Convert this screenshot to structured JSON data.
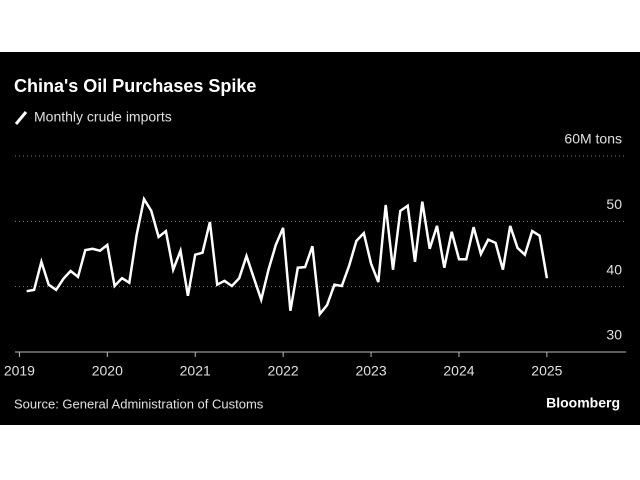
{
  "chart_data": {
    "type": "line",
    "title": "China's Oil Purchases Spike",
    "source": "Source: General Administration of Customs",
    "brand": "Bloomberg",
    "x": [
      2019.083,
      2019.167,
      2019.25,
      2019.333,
      2019.417,
      2019.5,
      2019.583,
      2019.667,
      2019.75,
      2019.833,
      2019.917,
      2020.0,
      2020.083,
      2020.167,
      2020.25,
      2020.333,
      2020.417,
      2020.5,
      2020.583,
      2020.667,
      2020.75,
      2020.833,
      2020.917,
      2021.0,
      2021.083,
      2021.167,
      2021.25,
      2021.333,
      2021.417,
      2021.5,
      2021.583,
      2021.667,
      2021.75,
      2021.833,
      2021.917,
      2022.0,
      2022.083,
      2022.167,
      2022.25,
      2022.333,
      2022.417,
      2022.5,
      2022.583,
      2022.667,
      2022.75,
      2022.833,
      2022.917,
      2023.0,
      2023.083,
      2023.167,
      2023.25,
      2023.333,
      2023.417,
      2023.5,
      2023.583,
      2023.667,
      2023.75,
      2023.833,
      2023.917,
      2024.0,
      2024.083,
      2024.167,
      2024.25,
      2024.333,
      2024.417,
      2024.5,
      2024.583,
      2024.667,
      2024.75,
      2024.833,
      2024.917,
      2025.0
    ],
    "series": [
      {
        "name": "Monthly crude imports",
        "color": "#ffffff",
        "values": [
          39.3,
          39.5,
          43.8,
          40.3,
          39.5,
          41.2,
          42.4,
          41.5,
          45.6,
          45.8,
          45.5,
          46.4,
          40.1,
          41.3,
          40.6,
          47.9,
          53.4,
          51.6,
          47.6,
          48.5,
          42.6,
          45.5,
          38.6,
          44.9,
          45.2,
          49.9,
          40.3,
          40.9,
          40.1,
          41.3,
          44.7,
          41.3,
          38.0,
          42.6,
          46.4,
          49.0,
          36.3,
          42.9,
          43.0,
          46.2,
          35.8,
          37.2,
          40.3,
          40.1,
          43.2,
          47.0,
          48.2,
          43.5,
          40.7,
          52.5,
          42.6,
          51.6,
          52.4,
          43.8,
          53.0,
          45.8,
          49.3,
          42.9,
          48.4,
          44.2,
          44.2,
          49.1,
          45.0,
          47.2,
          46.7,
          42.6,
          49.3,
          45.9,
          44.9,
          48.5,
          47.8,
          41.3
        ]
      }
    ],
    "ylim": [
      30,
      60
    ],
    "yticks": [
      30,
      40,
      50,
      {
        "value": 60,
        "label": "60M tons"
      }
    ],
    "xlim": [
      2018.95,
      2025.9
    ],
    "xticks": [
      2019,
      2020,
      2021,
      2022,
      2023,
      2024,
      2025
    ],
    "grid": true
  }
}
